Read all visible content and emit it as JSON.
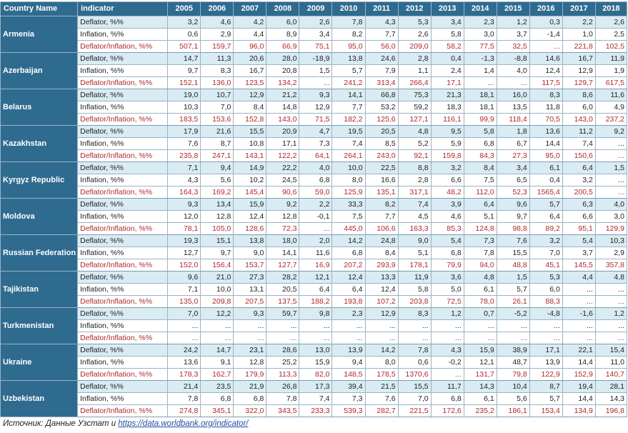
{
  "table": {
    "headers": [
      "Country Name",
      "indicator",
      "2005",
      "2006",
      "2007",
      "2008",
      "2009",
      "2010",
      "2011",
      "2012",
      "2013",
      "2014",
      "2015",
      "2016",
      "2017",
      "2018"
    ],
    "countries": [
      {
        "name": "Armenia",
        "rows": [
          {
            "indicator": "Deflator, %%",
            "values": [
              "3,2",
              "4,6",
              "4,2",
              "6,0",
              "2,6",
              "7,8",
              "4,3",
              "5,3",
              "3,4",
              "2,3",
              "1,2",
              "0,3",
              "2,2",
              "2,6"
            ]
          },
          {
            "indicator": "Inflation, %%",
            "values": [
              "0,6",
              "2,9",
              "4,4",
              "8,9",
              "3,4",
              "8,2",
              "7,7",
              "2,6",
              "5,8",
              "3,0",
              "3,7",
              "-1,4",
              "1,0",
              "2,5"
            ]
          },
          {
            "indicator": "Deflator/Inflation, %%",
            "values": [
              "507,1",
              "159,7",
              "96,0",
              "66,9",
              "75,1",
              "95,0",
              "56,0",
              "209,0",
              "58,2",
              "77,5",
              "32,5",
              "...",
              "221,8",
              "102,5"
            ]
          }
        ]
      },
      {
        "name": "Azerbaijan",
        "rows": [
          {
            "indicator": "Deflator, %%",
            "values": [
              "14,7",
              "11,3",
              "20,6",
              "28,0",
              "-18,9",
              "13,8",
              "24,6",
              "2,8",
              "0,4",
              "-1,3",
              "-8,8",
              "14,6",
              "16,7",
              "11,9"
            ]
          },
          {
            "indicator": "Inflation, %%",
            "values": [
              "9,7",
              "8,3",
              "16,7",
              "20,8",
              "1,5",
              "5,7",
              "7,9",
              "1,1",
              "2,4",
              "1,4",
              "4,0",
              "12,4",
              "12,9",
              "1,9"
            ]
          },
          {
            "indicator": "Deflator/Inflation, %%",
            "values": [
              "152,1",
              "136,0",
              "123,5",
              "134,2",
              "...",
              "241,2",
              "313,4",
              "266,4",
              "17,1",
              "...",
              "...",
              "117,5",
              "129,7",
              "617,5"
            ]
          }
        ]
      },
      {
        "name": "Belarus",
        "rows": [
          {
            "indicator": "Deflator, %%",
            "values": [
              "19,0",
              "10,7",
              "12,9",
              "21,2",
              "9,3",
              "14,1",
              "66,8",
              "75,3",
              "21,3",
              "18,1",
              "16,0",
              "8,3",
              "8,6",
              "11,6"
            ]
          },
          {
            "indicator": "Inflation, %%",
            "values": [
              "10,3",
              "7,0",
              "8,4",
              "14,8",
              "12,9",
              "7,7",
              "53,2",
              "59,2",
              "18,3",
              "18,1",
              "13,5",
              "11,8",
              "6,0",
              "4,9"
            ]
          },
          {
            "indicator": "Deflator/Inflation, %%",
            "values": [
              "183,5",
              "153,6",
              "152,8",
              "143,0",
              "71,5",
              "182,2",
              "125,6",
              "127,1",
              "116,1",
              "99,9",
              "118,4",
              "70,5",
              "143,0",
              "237,2"
            ]
          }
        ]
      },
      {
        "name": "Kazakhstan",
        "rows": [
          {
            "indicator": "Deflator, %%",
            "values": [
              "17,9",
              "21,6",
              "15,5",
              "20,9",
              "4,7",
              "19,5",
              "20,5",
              "4,8",
              "9,5",
              "5,8",
              "1,8",
              "13,6",
              "11,2",
              "9,2"
            ]
          },
          {
            "indicator": "Inflation, %%",
            "values": [
              "7,6",
              "8,7",
              "10,8",
              "17,1",
              "7,3",
              "7,4",
              "8,5",
              "5,2",
              "5,9",
              "6,8",
              "6,7",
              "14,4",
              "7,4",
              "..."
            ]
          },
          {
            "indicator": "Deflator/Inflation, %%",
            "values": [
              "235,8",
              "247,1",
              "143,1",
              "122,2",
              "64,1",
              "264,1",
              "243,0",
              "92,1",
              "159,8",
              "84,3",
              "27,3",
              "95,0",
              "150,6",
              "..."
            ]
          }
        ]
      },
      {
        "name": "Kyrgyz Republic",
        "rows": [
          {
            "indicator": "Deflator, %%",
            "values": [
              "7,1",
              "9,4",
              "14,9",
              "22,2",
              "4,0",
              "10,0",
              "22,5",
              "8,8",
              "3,2",
              "8,4",
              "3,4",
              "6,1",
              "6,4",
              "1,5"
            ]
          },
          {
            "indicator": "Inflation, %%",
            "values": [
              "4,3",
              "5,6",
              "10,2",
              "24,5",
              "6,8",
              "8,0",
              "16,6",
              "2,8",
              "6,6",
              "7,5",
              "6,5",
              "0,4",
              "3,2",
              "..."
            ]
          },
          {
            "indicator": "Deflator/Inflation, %%",
            "values": [
              "164,3",
              "169,2",
              "145,4",
              "90,6",
              "59,0",
              "125,9",
              "135,1",
              "317,1",
              "48,2",
              "112,0",
              "52,3",
              "1565,4",
              "200,5",
              "..."
            ]
          }
        ]
      },
      {
        "name": "Moldova",
        "rows": [
          {
            "indicator": "Deflator, %%",
            "values": [
              "9,3",
              "13,4",
              "15,9",
              "9,2",
              "2,2",
              "33,3",
              "8,2",
              "7,4",
              "3,9",
              "6,4",
              "9,6",
              "5,7",
              "6,3",
              "4,0"
            ]
          },
          {
            "indicator": "Inflation, %%",
            "values": [
              "12,0",
              "12,8",
              "12,4",
              "12,8",
              "-0,1",
              "7,5",
              "7,7",
              "4,5",
              "4,6",
              "5,1",
              "9,7",
              "6,4",
              "6,6",
              "3,0"
            ]
          },
          {
            "indicator": "Deflator/Inflation, %%",
            "values": [
              "78,1",
              "105,0",
              "128,6",
              "72,3",
              "...",
              "445,0",
              "106,6",
              "163,3",
              "85,3",
              "124,8",
              "98,8",
              "89,2",
              "95,1",
              "129,9"
            ]
          }
        ]
      },
      {
        "name": "Russian Federation",
        "rows": [
          {
            "indicator": "Deflator, %%",
            "values": [
              "19,3",
              "15,1",
              "13,8",
              "18,0",
              "2,0",
              "14,2",
              "24,8",
              "9,0",
              "5,4",
              "7,3",
              "7,6",
              "3,2",
              "5,4",
              "10,3"
            ]
          },
          {
            "indicator": "Inflation, %%",
            "values": [
              "12,7",
              "9,7",
              "9,0",
              "14,1",
              "11,6",
              "6,8",
              "8,4",
              "5,1",
              "6,8",
              "7,8",
              "15,5",
              "7,0",
              "3,7",
              "2,9"
            ]
          },
          {
            "indicator": "Deflator/Inflation, %%",
            "values": [
              "152,0",
              "156,4",
              "153,7",
              "127,7",
              "16,9",
              "207,2",
              "293,9",
              "178,1",
              "79,9",
              "94,0",
              "48,8",
              "45,1",
              "145,5",
              "357,8"
            ]
          }
        ]
      },
      {
        "name": "Tajikistan",
        "rows": [
          {
            "indicator": "Deflator, %%",
            "values": [
              "9,6",
              "21,0",
              "27,3",
              "28,2",
              "12,1",
              "12,4",
              "13,3",
              "11,9",
              "3,6",
              "4,8",
              "1,5",
              "5,3",
              "4,4",
              "4,8"
            ]
          },
          {
            "indicator": "Inflation, %%",
            "values": [
              "7,1",
              "10,0",
              "13,1",
              "20,5",
              "6,4",
              "6,4",
              "12,4",
              "5,8",
              "5,0",
              "6,1",
              "5,7",
              "6,0",
              "...",
              "..."
            ]
          },
          {
            "indicator": "Deflator/Inflation, %%",
            "values": [
              "135,0",
              "209,8",
              "207,5",
              "137,5",
              "188,2",
              "193,8",
              "107,2",
              "203,8",
              "72,5",
              "78,0",
              "26,1",
              "88,3",
              "...",
              "..."
            ]
          }
        ]
      },
      {
        "name": "Turkmenistan",
        "rows": [
          {
            "indicator": "Deflator, %%",
            "values": [
              "7,0",
              "12,2",
              "9,3",
              "59,7",
              "9,8",
              "2,3",
              "12,9",
              "8,3",
              "1,2",
              "0,7",
              "-5,2",
              "-4,8",
              "-1,6",
              "1,2"
            ]
          },
          {
            "indicator": "Inflation, %%",
            "values": [
              "...",
              "...",
              "...",
              "...",
              "...",
              "...",
              "...",
              "...",
              "...",
              "...",
              "...",
              "...",
              "...",
              "..."
            ]
          },
          {
            "indicator": "Deflator/Inflation, %%",
            "values": [
              "...",
              "...",
              "...",
              "...",
              "...",
              "...",
              "...",
              "...",
              "...",
              "...",
              "...",
              "...",
              "...",
              "..."
            ]
          }
        ]
      },
      {
        "name": "Ukraine",
        "rows": [
          {
            "indicator": "Deflator, %%",
            "values": [
              "24,2",
              "14,7",
              "23,1",
              "28,6",
              "13,0",
              "13,9",
              "14,2",
              "7,8",
              "4,3",
              "15,9",
              "38,9",
              "17,1",
              "22,1",
              "15,4"
            ]
          },
          {
            "indicator": "Inflation, %%",
            "values": [
              "13,6",
              "9,1",
              "12,8",
              "25,2",
              "15,9",
              "9,4",
              "8,0",
              "0,6",
              "-0,2",
              "12,1",
              "48,7",
              "13,9",
              "14,4",
              "11,0"
            ]
          },
          {
            "indicator": "Deflator/Inflation, %%",
            "values": [
              "178,3",
              "162,7",
              "179,9",
              "113,3",
              "82,0",
              "148,5",
              "178,5",
              "1370,6",
              "...",
              "131,7",
              "79,8",
              "122,9",
              "152,9",
              "140,7"
            ]
          }
        ]
      },
      {
        "name": "Uzbekistan",
        "rows": [
          {
            "indicator": "Deflator, %%",
            "values": [
              "21,4",
              "23,5",
              "21,9",
              "26,8",
              "17,3",
              "39,4",
              "21,5",
              "15,5",
              "11,7",
              "14,3",
              "10,4",
              "8,7",
              "19,4",
              "28,1"
            ]
          },
          {
            "indicator": "Inflation, %%",
            "values": [
              "7,8",
              "6,8",
              "6,8",
              "7,8",
              "7,4",
              "7,3",
              "7,6",
              "7,0",
              "6,8",
              "6,1",
              "5,6",
              "5,7",
              "14,4",
              "14,3"
            ]
          },
          {
            "indicator": "Deflator/Inflation, %%",
            "values": [
              "274,8",
              "345,1",
              "322,0",
              "343,5",
              "233,3",
              "539,3",
              "282,7",
              "221,5",
              "172,6",
              "235,2",
              "186,1",
              "153,4",
              "134,9",
              "196,8"
            ]
          }
        ]
      }
    ]
  },
  "source": {
    "prefix": "Источник: Данные Узстат и ",
    "link": "https://data.worldbank.org/indicator/"
  },
  "colors": {
    "header_bg": "#2f6b8f",
    "stripe_bg": "#d9ebf3",
    "ratio_text": "#b0282a",
    "link": "#1f4fa0"
  }
}
